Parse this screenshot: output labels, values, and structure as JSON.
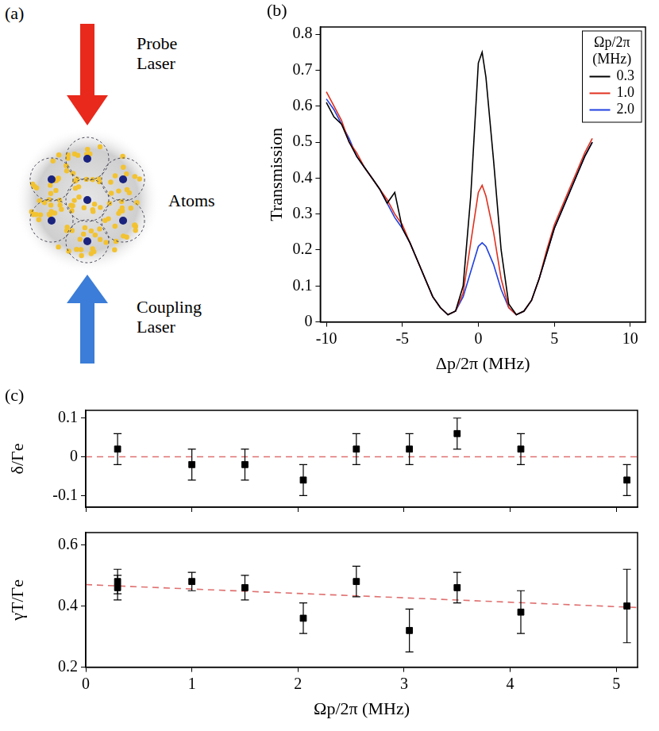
{
  "diagram": {
    "panel": "(a)",
    "probe": "Probe Laser",
    "atoms": "Atoms",
    "coupling": "Coupling Laser"
  },
  "chart_data": [
    {
      "type": "line",
      "panel": "(b)",
      "x_label": "Δp/2π (MHz)",
      "y_label": "Transmission",
      "x": [
        -10,
        -9.5,
        -9,
        -8.5,
        -8,
        -7.5,
        -7,
        -6.5,
        -6,
        -5.5,
        -5,
        -4.5,
        -4,
        -3.5,
        -3,
        -2.5,
        -2,
        -1.5,
        -1,
        -0.5,
        0,
        0.25,
        0.5,
        1,
        1.5,
        2,
        2.5,
        3,
        3.5,
        4,
        4.5,
        5,
        5.5,
        6,
        6.5,
        7,
        7.5
      ],
      "series": [
        {
          "name": "0.3",
          "color": "#000000",
          "values": [
            0.61,
            0.57,
            0.55,
            0.5,
            0.46,
            0.43,
            0.4,
            0.37,
            0.33,
            0.36,
            0.26,
            0.22,
            0.17,
            0.12,
            0.07,
            0.04,
            0.02,
            0.03,
            0.1,
            0.35,
            0.72,
            0.75,
            0.68,
            0.45,
            0.2,
            0.05,
            0.02,
            0.03,
            0.06,
            0.12,
            0.19,
            0.26,
            0.31,
            0.36,
            0.41,
            0.46,
            0.5
          ]
        },
        {
          "name": "1.0",
          "color": "#e0301e",
          "values": [
            0.64,
            0.6,
            0.56,
            0.5,
            0.47,
            0.43,
            0.4,
            0.37,
            0.34,
            0.3,
            0.27,
            0.22,
            0.17,
            0.12,
            0.07,
            0.04,
            0.02,
            0.03,
            0.08,
            0.22,
            0.36,
            0.38,
            0.35,
            0.25,
            0.12,
            0.04,
            0.02,
            0.03,
            0.06,
            0.12,
            0.2,
            0.27,
            0.32,
            0.37,
            0.42,
            0.47,
            0.51
          ]
        },
        {
          "name": "2.0",
          "color": "#2040e0",
          "values": [
            0.62,
            0.59,
            0.55,
            0.51,
            0.46,
            0.43,
            0.4,
            0.37,
            0.33,
            0.29,
            0.26,
            0.22,
            0.17,
            0.12,
            0.07,
            0.04,
            0.02,
            0.03,
            0.07,
            0.14,
            0.21,
            0.22,
            0.21,
            0.16,
            0.09,
            0.04,
            0.02,
            0.03,
            0.06,
            0.12,
            0.19,
            0.26,
            0.31,
            0.36,
            0.41,
            0.46,
            0.5
          ]
        }
      ],
      "legend_title": "Ωp/2π (MHz)",
      "legend": "upper right",
      "xlim": [
        -10.4,
        11
      ],
      "xticks": [
        -10,
        -5,
        0,
        5,
        10
      ],
      "ylim": [
        0,
        0.82
      ],
      "yticks": [
        0,
        0.1,
        0.2,
        0.3,
        0.4,
        0.5,
        0.6,
        0.7,
        0.8
      ],
      "grid": false
    },
    {
      "type": "scatter",
      "panel": "(c)",
      "y_label": "δ/Γe",
      "series": [
        {
          "type": "scatter",
          "color": "#000000",
          "marker": "square",
          "x": [
            0.3,
            1.0,
            1.5,
            2.05,
            2.55,
            3.05,
            3.5,
            4.1,
            5.1
          ],
          "values": [
            0.02,
            -0.02,
            -0.02,
            -0.06,
            0.02,
            0.02,
            0.06,
            0.02,
            -0.06
          ],
          "errors": [
            0.04,
            0.04,
            0.04,
            0.04,
            0.04,
            0.04,
            0.04,
            0.04,
            0.04
          ]
        },
        {
          "type": "line",
          "color": "#e07070",
          "line_style": "dashed",
          "x": [
            0,
            5.2
          ],
          "values": [
            0,
            0
          ]
        }
      ],
      "xlim": [
        0,
        5.2
      ],
      "xticks": [
        0,
        1,
        2,
        3,
        4,
        5
      ],
      "ylim": [
        -0.13,
        0.12
      ],
      "yticks": [
        -0.1,
        0,
        0.1
      ],
      "tick_labels": "y",
      "grid": false
    },
    {
      "type": "scatter",
      "x_label": "Ωp/2π (MHz)",
      "y_label": "γT/Γe",
      "series": [
        {
          "type": "scatter",
          "color": "#000000",
          "marker": "square",
          "x": [
            0.3,
            0.3,
            1.0,
            1.5,
            2.05,
            2.55,
            3.05,
            3.5,
            4.1,
            5.1
          ],
          "values": [
            0.48,
            0.46,
            0.48,
            0.46,
            0.36,
            0.48,
            0.32,
            0.46,
            0.38,
            0.4
          ],
          "errors": [
            0.04,
            0.04,
            0.03,
            0.04,
            0.05,
            0.05,
            0.07,
            0.05,
            0.07,
            0.12
          ]
        },
        {
          "type": "line",
          "color": "#e07070",
          "line_style": "dashed",
          "x": [
            0,
            5.2
          ],
          "values": [
            0.47,
            0.395
          ]
        }
      ],
      "xlim": [
        0,
        5.2
      ],
      "xticks": [
        0,
        1,
        2,
        3,
        4,
        5
      ],
      "ylim": [
        0.2,
        0.64
      ],
      "yticks": [
        0.2,
        0.4,
        0.6
      ],
      "grid": false
    }
  ]
}
